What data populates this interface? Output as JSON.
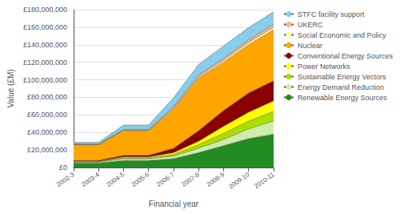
{
  "chart_data": {
    "type": "area",
    "stacked": true,
    "grid": true,
    "legend": "right",
    "xlabel": "Financial year",
    "ylabel": "Value (£M)",
    "categories": [
      "2002-3",
      "2003-4",
      "2004-5",
      "2005-6",
      "2006-7",
      "2007-8",
      "2008-9",
      "2009-10",
      "2010-11"
    ],
    "series": [
      {
        "name": "STFC facility support",
        "color": "#87ceeb",
        "values": [
          2000000,
          2000000,
          5000000,
          5000000,
          10000000,
          12000000,
          14000000,
          14000000,
          14000000
        ]
      },
      {
        "name": "UKERC",
        "color": "#ffb090",
        "values": [
          300000,
          300000,
          800000,
          800000,
          1500000,
          2000000,
          2500000,
          3000000,
          3500000
        ]
      },
      {
        "name": "Social Economic and Policy",
        "color": "#ffffa0",
        "values": [
          300000,
          300000,
          600000,
          600000,
          1000000,
          1500000,
          2000000,
          2500000,
          3000000
        ]
      },
      {
        "name": "Nuclear",
        "color": "#ffa500",
        "values": [
          18000000,
          18000000,
          28000000,
          28000000,
          45000000,
          60000000,
          55000000,
          55000000,
          58000000
        ]
      },
      {
        "name": "Conventional Energy Sources",
        "color": "#8b0000",
        "values": [
          1000000,
          1000000,
          2000000,
          2000000,
          5000000,
          12000000,
          18000000,
          22000000,
          23000000
        ]
      },
      {
        "name": "Power Networks",
        "color": "#ffff00",
        "values": [
          500000,
          500000,
          1000000,
          1000000,
          2000000,
          4000000,
          8000000,
          10000000,
          12000000
        ]
      },
      {
        "name": "Sustainable Energy Vectors",
        "color": "#aadd00",
        "values": [
          500000,
          500000,
          1000000,
          1000000,
          2000000,
          4000000,
          7000000,
          9000000,
          11000000
        ]
      },
      {
        "name": "Energy Demand Reduction",
        "color": "#cceeaa",
        "values": [
          1000000,
          1000000,
          2000000,
          2000000,
          3000000,
          5000000,
          7000000,
          11000000,
          15000000
        ]
      },
      {
        "name": "Renewable Energy Sources",
        "color": "#228b22",
        "values": [
          5000000,
          5000000,
          8000000,
          8000000,
          10000000,
          17000000,
          25000000,
          33000000,
          38000000
        ]
      }
    ],
    "ylim": [
      0,
      180000000
    ],
    "yticks": [
      {
        "value": 0,
        "label": "£0"
      },
      {
        "value": 20000000,
        "label": "£20,000,000"
      },
      {
        "value": 40000000,
        "label": "£40,000,000"
      },
      {
        "value": 60000000,
        "label": "£60,000,000"
      },
      {
        "value": 80000000,
        "label": "£80,000,000"
      },
      {
        "value": 100000000,
        "label": "£100,000,000"
      },
      {
        "value": 120000000,
        "label": "£120,000,000"
      },
      {
        "value": 140000000,
        "label": "£140,000,000"
      },
      {
        "value": 160000000,
        "label": "£160,000,000"
      },
      {
        "value": 180000000,
        "label": "£180,000,000"
      }
    ]
  }
}
